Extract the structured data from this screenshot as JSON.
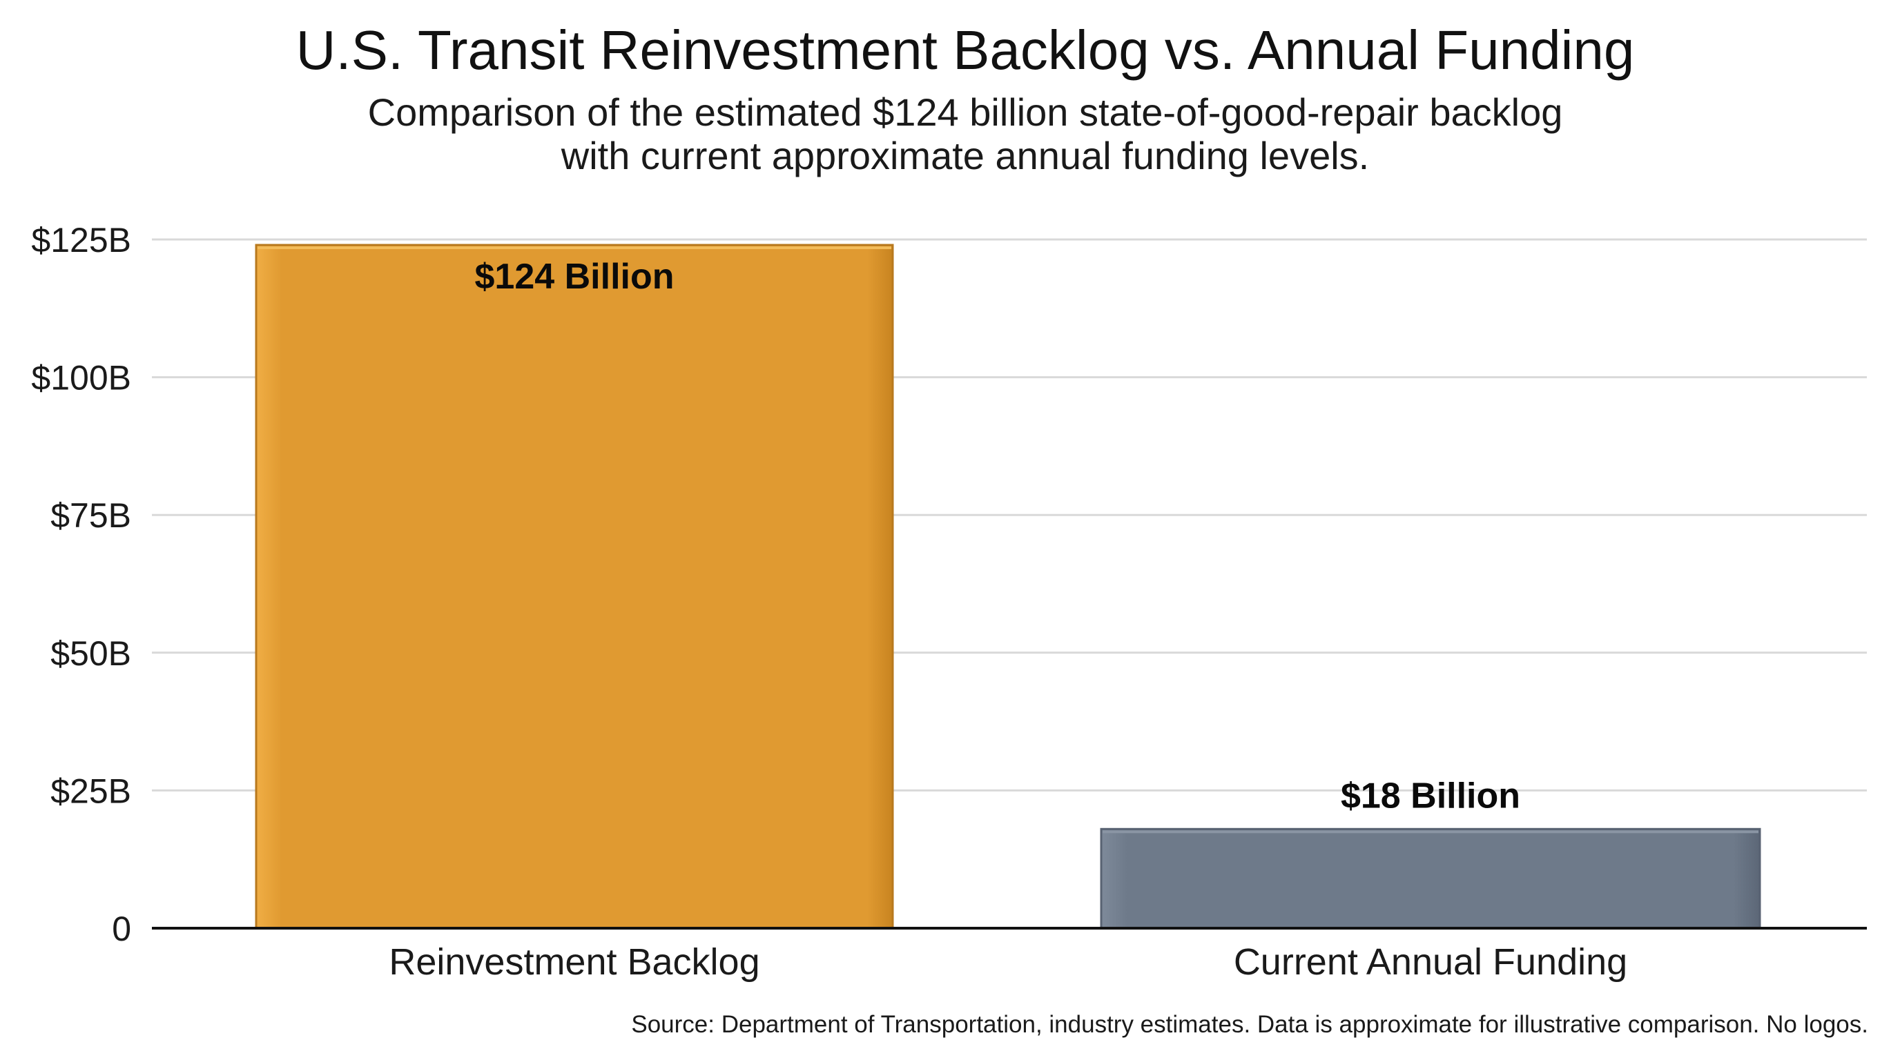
{
  "chart_data": {
    "type": "bar",
    "title": "U.S. Transit Reinvestment Backlog vs. Annual Funding",
    "subtitle_lines": [
      "Comparison of the estimated $124 billion state-of-good-repair backlog",
      "with current approximate annual funding levels."
    ],
    "categories": [
      "Reinvestment Backlog",
      "Current Annual Funding"
    ],
    "values": [
      124,
      18
    ],
    "data_labels": [
      "$124 Billion",
      "$18 Billion"
    ],
    "bar_colors": [
      "#E09A31",
      "#6E7A8A"
    ],
    "xlabel": "",
    "ylabel": "",
    "ylim": [
      0,
      125
    ],
    "yticks": [
      0,
      25,
      50,
      75,
      100,
      125
    ],
    "ytick_labels": [
      "0",
      "$25B",
      "$50B",
      "$75B",
      "$100B",
      "$125B"
    ],
    "grid": true,
    "legend": "none",
    "source": "Source: Department of Transportation, industry estimates. Data is approximate for illustrative comparison. No logos."
  }
}
